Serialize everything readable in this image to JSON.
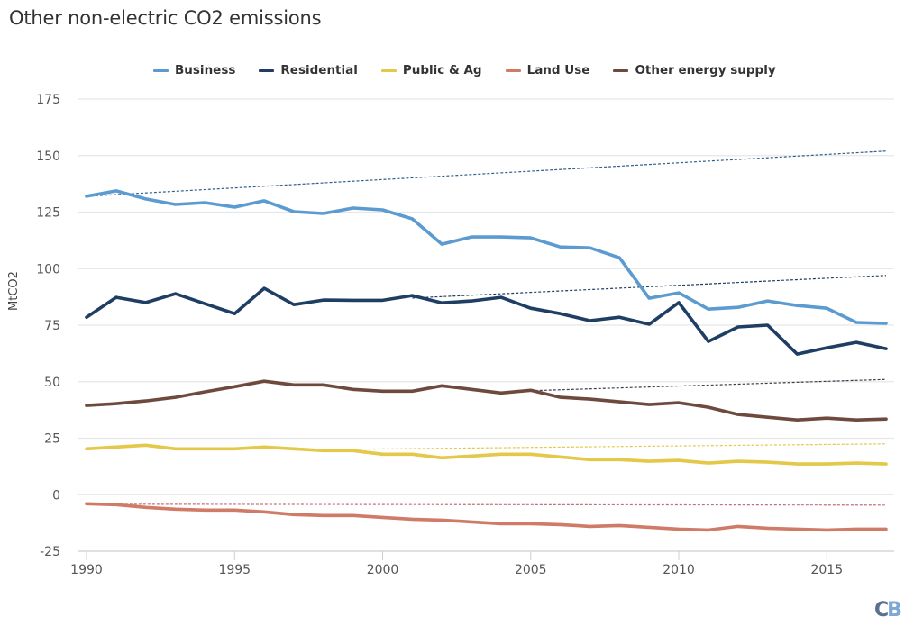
{
  "title": "Other non-electric CO2 emissions",
  "logo": {
    "c": "C",
    "b": "B"
  },
  "chart_data": {
    "type": "line",
    "title": "Other non-electric CO2 emissions",
    "xlabel": "",
    "ylabel": "MtCO2",
    "xlim": [
      1990,
      2017
    ],
    "ylim": [
      -25,
      175
    ],
    "grid": true,
    "legend_position": "top",
    "x_ticks": [
      1990,
      1995,
      2000,
      2005,
      2010,
      2015
    ],
    "y_ticks": [
      -25,
      0,
      25,
      50,
      75,
      100,
      125,
      150,
      175
    ],
    "x": [
      1990,
      1991,
      1992,
      1993,
      1994,
      1995,
      1996,
      1997,
      1998,
      1999,
      2000,
      2001,
      2002,
      2003,
      2004,
      2005,
      2006,
      2007,
      2008,
      2009,
      2010,
      2011,
      2012,
      2013,
      2014,
      2015,
      2016,
      2017
    ],
    "series": [
      {
        "name": "Business",
        "color": "#5b9bd0",
        "values": [
          132,
          134.4,
          130.8,
          128.4,
          129.2,
          127.2,
          130,
          125.2,
          124.4,
          126.8,
          126,
          122,
          110.8,
          114,
          114,
          113.6,
          109.6,
          109.2,
          104.8,
          86.9,
          89.3,
          82.1,
          82.9,
          85.7,
          83.7,
          82.5,
          76.2,
          75.8
        ],
        "trend": {
          "start": [
            1990,
            132
          ],
          "end": [
            2017,
            152
          ],
          "color": "#2f5f8a"
        }
      },
      {
        "name": "Residential",
        "color": "#1f3e63",
        "values": [
          78.5,
          87.3,
          85,
          88.9,
          84.5,
          80.1,
          91.3,
          84.1,
          86.1,
          86,
          86,
          88.1,
          84.9,
          85.7,
          87.3,
          82.5,
          80.1,
          77,
          78.5,
          75.4,
          85,
          67.8,
          74.2,
          75,
          62.2,
          65,
          67.4,
          64.6
        ],
        "trend": {
          "start": [
            2001,
            87
          ],
          "end": [
            2017,
            97
          ],
          "color": "#1f3e63"
        }
      },
      {
        "name": "Public & Ag",
        "color": "#e3c84a",
        "values": [
          20.3,
          21.1,
          21.9,
          20.3,
          20.3,
          20.3,
          21.1,
          20.3,
          19.5,
          19.5,
          17.9,
          17.9,
          16.3,
          17.1,
          17.9,
          17.9,
          16.7,
          15.5,
          15.5,
          14.8,
          15.2,
          14,
          14.8,
          14.4,
          13.6,
          13.6,
          14,
          13.6
        ],
        "trend": {
          "start": [
            1998,
            20
          ],
          "end": [
            2017,
            22.5
          ],
          "color": "#e3c84a"
        }
      },
      {
        "name": "Land Use",
        "color": "#d07a68",
        "values": [
          -4,
          -4.4,
          -5.6,
          -6.4,
          -6.8,
          -6.8,
          -7.6,
          -8.8,
          -9.2,
          -9.2,
          -10,
          -10.8,
          -11.2,
          -12,
          -12.8,
          -12.8,
          -13.2,
          -14,
          -13.6,
          -14.4,
          -15.2,
          -15.6,
          -14,
          -14.8,
          -15.2,
          -15.6,
          -15.2,
          -15.2
        ],
        "trend": {
          "start": [
            1991,
            -4.2
          ],
          "end": [
            2017,
            -4.6
          ],
          "color": "#c0707a"
        }
      },
      {
        "name": "Other energy supply",
        "color": "#6e4a3e",
        "values": [
          39.5,
          40.3,
          41.5,
          43.1,
          45.5,
          47.8,
          50.2,
          48.6,
          48.6,
          46.6,
          45.8,
          45.8,
          48.2,
          46.6,
          45,
          46.2,
          43.1,
          42.3,
          41.1,
          39.9,
          40.7,
          38.7,
          35.5,
          34.3,
          33.1,
          33.9,
          33.1,
          33.5
        ],
        "trend": {
          "start": [
            2005,
            46
          ],
          "end": [
            2017,
            51
          ],
          "color": "#3a3f4a"
        }
      }
    ]
  }
}
